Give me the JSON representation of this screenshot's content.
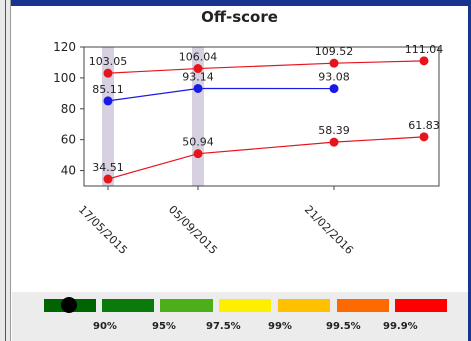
{
  "chart_data": {
    "type": "line",
    "title": "Off-score",
    "xlabel": "",
    "ylabel": "",
    "ylim": [
      30,
      120
    ],
    "yticks": [
      40,
      60,
      80,
      100,
      120
    ],
    "x_tick_labels": [
      "17/05/2015",
      "05/09/2015",
      "21/02/2016"
    ],
    "highlight_bands": [
      "17/05/2015",
      "05/09/2015"
    ],
    "grid": false,
    "series": [
      {
        "color": "#e8141c",
        "points": [
          {
            "x": "17/05/2015",
            "y": 103.05,
            "label": "103.05"
          },
          {
            "x": "05/09/2015",
            "y": 106.04,
            "label": "106.04"
          },
          {
            "x": "21/02/2016",
            "y": 109.52,
            "label": "109.52"
          },
          {
            "x": "",
            "y": 111.04,
            "label": "111.04"
          }
        ]
      },
      {
        "color": "#1a1ae6",
        "points": [
          {
            "x": "17/05/2015",
            "y": 85.11,
            "label": "85.11"
          },
          {
            "x": "05/09/2015",
            "y": 93.14,
            "label": "93.14"
          },
          {
            "x": "21/02/2016",
            "y": 93.08,
            "label": "93.08"
          }
        ]
      },
      {
        "color": "#e8141c",
        "points": [
          {
            "x": "17/05/2015",
            "y": 34.51,
            "label": "34.51"
          },
          {
            "x": "05/09/2015",
            "y": 50.94,
            "label": "50.94"
          },
          {
            "x": "21/02/2016",
            "y": 58.39,
            "label": "58.39"
          },
          {
            "x": "",
            "y": 61.83,
            "label": "61.83"
          }
        ]
      }
    ]
  },
  "legend": {
    "segments": [
      {
        "color": "#006400"
      },
      {
        "color": "#0a7a0a"
      },
      {
        "color": "#4caf1a"
      },
      {
        "color": "#ffee00"
      },
      {
        "color": "#ffc000"
      },
      {
        "color": "#ff6a00"
      },
      {
        "color": "#ff0000"
      }
    ],
    "labels": [
      "90%",
      "95%",
      "97.5%",
      "99%",
      "99.5%",
      "99.9%"
    ]
  }
}
